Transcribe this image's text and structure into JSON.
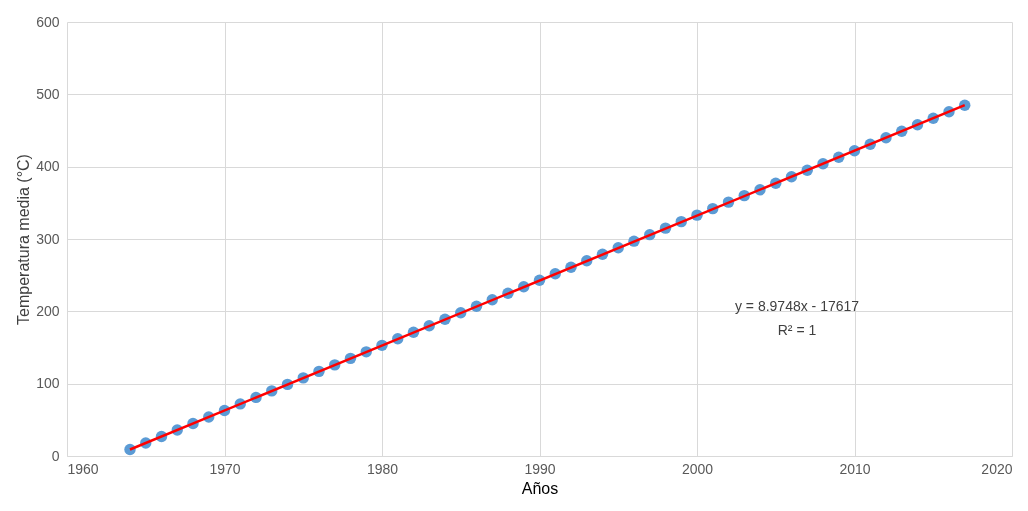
{
  "chart_data": {
    "type": "scatter",
    "xlabel": "Años",
    "ylabel": "Temperatura media (°C)",
    "x": [
      1964,
      1965,
      1966,
      1967,
      1968,
      1969,
      1970,
      1971,
      1972,
      1973,
      1974,
      1975,
      1976,
      1977,
      1978,
      1979,
      1980,
      1981,
      1982,
      1983,
      1984,
      1985,
      1986,
      1987,
      1988,
      1989,
      1990,
      1991,
      1992,
      1993,
      1994,
      1995,
      1996,
      1997,
      1998,
      1999,
      2000,
      2001,
      2002,
      2003,
      2004,
      2005,
      2006,
      2007,
      2008,
      2009,
      2010,
      2011,
      2012,
      2013,
      2014,
      2015,
      2016,
      2017
    ],
    "series": [
      {
        "color": "#5b9bd5",
        "values": [
          9,
          18,
          27,
          36,
          45,
          54,
          63,
          72,
          81,
          90,
          99,
          108,
          117,
          126,
          135,
          144,
          153,
          162,
          171,
          180,
          189,
          198,
          207,
          216,
          225,
          234,
          243,
          252,
          261,
          270,
          279,
          288,
          297,
          306,
          315,
          324,
          333,
          342,
          351,
          360,
          368,
          377,
          386,
          395,
          404,
          413,
          422,
          431,
          440,
          449,
          458,
          467,
          476,
          485
        ]
      },
      {
        "type": "line",
        "marker": "none",
        "color": "#ff0000",
        "x": [
          1964,
          2017
        ],
        "values": [
          9,
          485
        ]
      }
    ],
    "annotations": [
      "y = 8.9748x - 17617",
      "R² = 1"
    ],
    "xlim": [
      1960,
      2020
    ],
    "xticks": [
      1960,
      1970,
      1980,
      1990,
      2000,
      2010,
      2020
    ],
    "ylim": [
      0,
      600
    ],
    "yticks": [
      0,
      100,
      200,
      300,
      400,
      500,
      600
    ],
    "grid": true,
    "marker": "circle"
  }
}
